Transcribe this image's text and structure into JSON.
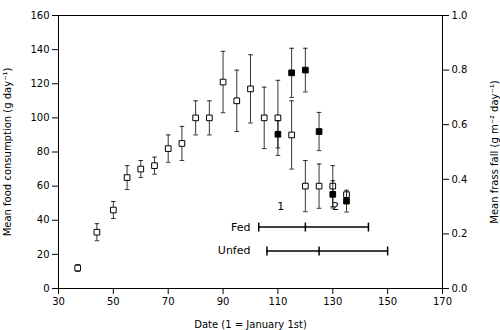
{
  "chart_data": {
    "type": "scatter",
    "xlabel": "Date (1 = January 1st)",
    "ylabel": "Mean food consumption (g day⁻¹)",
    "y2label": "Mean frass fall (g m⁻² day⁻¹)",
    "xlim": [
      30,
      170
    ],
    "xticks": [
      30,
      50,
      70,
      90,
      110,
      130,
      150,
      170
    ],
    "ylim": [
      0,
      160
    ],
    "yticks": [
      0,
      20,
      40,
      60,
      80,
      100,
      120,
      140,
      160
    ],
    "y2lim": [
      0,
      1.0
    ],
    "y2ticks": [
      {
        "value": 0,
        "label": "0.0"
      },
      0.2,
      0.4,
      0.6,
      0.8,
      {
        "value": 1.0,
        "label": "1.0"
      }
    ],
    "grid": false,
    "series": [
      {
        "axis": "y",
        "marker": "square_open",
        "color": "#000000",
        "x": [
          37,
          44,
          50,
          55,
          60,
          65,
          70,
          75,
          80,
          85,
          90,
          95,
          100,
          105,
          110,
          115,
          120,
          125,
          130,
          135
        ],
        "values": [
          12,
          33,
          46,
          65,
          70,
          72,
          82,
          85,
          100,
          100,
          121,
          110,
          117,
          100,
          100,
          90,
          60,
          60,
          60,
          55
        ],
        "errors": [
          2,
          5,
          5,
          7,
          5,
          5,
          8,
          10,
          10,
          10,
          18,
          18,
          20,
          18,
          22,
          20,
          15,
          13,
          12,
          0
        ]
      },
      {
        "axis": "y2",
        "marker": "square_filled",
        "color": "#000000",
        "x": [
          110,
          115,
          120,
          125,
          130,
          135
        ],
        "values": [
          0.565,
          0.79,
          0.8,
          0.575,
          0.345,
          0.32
        ],
        "errors": [
          0.05,
          0.09,
          0.08,
          0.07,
          0.05,
          0.04
        ]
      }
    ],
    "period_bars": [
      {
        "label": "Fed",
        "label_x": 100,
        "y": 36,
        "x": [
          103,
          120,
          143
        ]
      },
      {
        "label": "Unfed",
        "label_x": 100,
        "y": 22,
        "x": [
          106,
          125,
          150
        ]
      }
    ],
    "annotations": [
      {
        "text": "1",
        "x": 111,
        "y": 48
      },
      {
        "text": "2",
        "x": 131,
        "y": 48
      }
    ]
  }
}
